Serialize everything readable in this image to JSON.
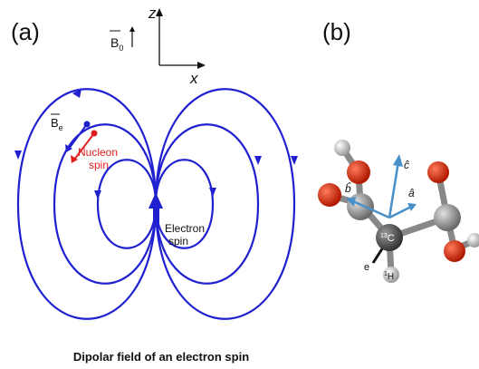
{
  "panel_a": {
    "label": "(a)",
    "field_symbol": "B",
    "field_subscript": "0",
    "z_axis": "z",
    "x_axis": "x",
    "local_field_symbol": "B",
    "local_field_subscript": "e",
    "nucleon_label": [
      "Nucleon",
      "spin"
    ],
    "electron_label": [
      "Electron",
      "spin"
    ],
    "caption": "Dipolar field of an electron spin"
  },
  "panel_b": {
    "label": "(b)",
    "axis_c": "ĉ",
    "axis_b": "b̂",
    "axis_a": "â",
    "carbon_mass": "13",
    "carbon_symbol": "C",
    "electron_symbol": "e",
    "hydrogen_mass": "1",
    "hydrogen_symbol": "H"
  }
}
